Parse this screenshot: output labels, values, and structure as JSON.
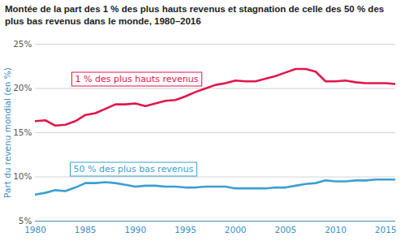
{
  "chart_data": {
    "type": "line",
    "title": "Montée de la part des 1 % des plus hauts revenus et stagnation de celle des 50 % des plus bas revenus dans le monde, 1980–2016",
    "y_label": "Part du revenu mondial (en %)",
    "x": [
      1980,
      1981,
      1982,
      1983,
      1984,
      1985,
      1986,
      1987,
      1988,
      1989,
      1990,
      1991,
      1992,
      1993,
      1994,
      1995,
      1996,
      1997,
      1998,
      1999,
      2000,
      2001,
      2002,
      2003,
      2004,
      2005,
      2006,
      2007,
      2008,
      2009,
      2010,
      2011,
      2012,
      2013,
      2014,
      2015,
      2016
    ],
    "series": [
      {
        "name": "1 % des plus hauts revenus",
        "color": "#e0174b",
        "values": [
          16.3,
          16.4,
          15.8,
          15.9,
          16.3,
          17.0,
          17.2,
          17.7,
          18.2,
          18.2,
          18.3,
          18.0,
          18.3,
          18.6,
          18.7,
          19.1,
          19.6,
          20.0,
          20.4,
          20.6,
          20.9,
          20.8,
          20.8,
          21.1,
          21.4,
          21.8,
          22.2,
          22.2,
          21.9,
          20.8,
          20.8,
          20.9,
          20.7,
          20.6,
          20.6,
          20.6,
          20.5
        ]
      },
      {
        "name": "50 % des plus bas revenus",
        "color": "#3b9fd1",
        "values": [
          8.0,
          8.2,
          8.5,
          8.4,
          8.8,
          9.3,
          9.3,
          9.4,
          9.3,
          9.1,
          8.9,
          9.0,
          9.0,
          8.9,
          8.9,
          8.8,
          8.8,
          8.9,
          8.9,
          8.9,
          8.7,
          8.7,
          8.7,
          8.7,
          8.8,
          8.8,
          9.0,
          9.2,
          9.3,
          9.6,
          9.5,
          9.5,
          9.6,
          9.6,
          9.7,
          9.7,
          9.7
        ]
      }
    ],
    "xlim": [
      1980,
      2016
    ],
    "xticks": [
      1980,
      1985,
      1990,
      1995,
      2000,
      2005,
      2010,
      2015
    ],
    "ylim": [
      5,
      25
    ],
    "yticks": [
      {
        "value": 5,
        "label": "5%"
      },
      {
        "value": 10,
        "label": "10%"
      },
      {
        "value": 15,
        "label": "15%"
      },
      {
        "value": 20,
        "label": "20%"
      },
      {
        "value": 25,
        "label": "25%"
      }
    ],
    "grid": true
  }
}
